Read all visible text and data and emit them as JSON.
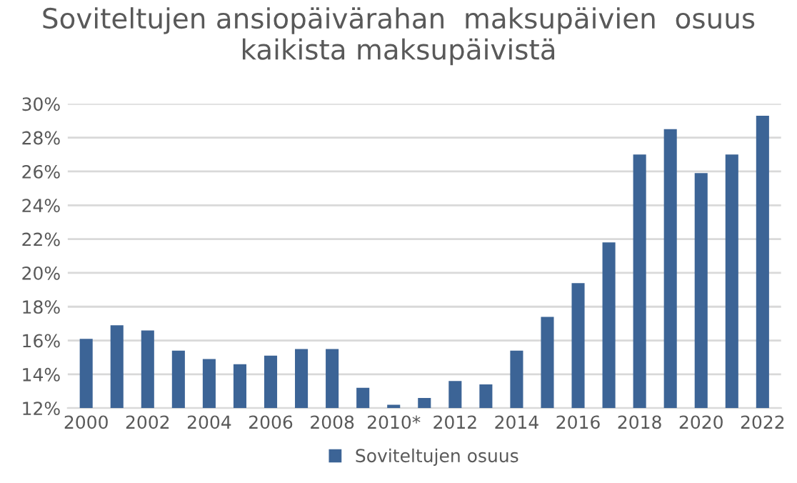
{
  "chart_data": {
    "type": "bar",
    "title": "Soviteltujen ansiopäivärahan  maksupäivien  osuus kaikista maksupäivistä",
    "categories": [
      "2000",
      null,
      "2002",
      null,
      "2004",
      null,
      "2006",
      null,
      "2008",
      null,
      "2010*",
      null,
      "2012",
      null,
      "2014",
      null,
      "2016",
      null,
      "2018",
      null,
      "2020",
      null,
      "2022"
    ],
    "series": [
      {
        "name": "Soviteltujen osuus",
        "color": "#3c6496",
        "values": [
          16.1,
          16.9,
          16.6,
          15.4,
          14.9,
          14.6,
          15.1,
          15.5,
          15.5,
          13.2,
          12.2,
          12.6,
          13.6,
          13.4,
          15.4,
          17.4,
          19.4,
          21.8,
          27.0,
          28.5,
          25.9,
          27.0,
          29.3
        ]
      }
    ],
    "ylim": [
      12,
      30
    ],
    "yticks": [
      {
        "value": 12,
        "label": "12%"
      },
      {
        "value": 14,
        "label": "14%"
      },
      {
        "value": 16,
        "label": "16%"
      },
      {
        "value": 18,
        "label": "18%"
      },
      {
        "value": 20,
        "label": "20%"
      },
      {
        "value": 22,
        "label": "22%"
      },
      {
        "value": 24,
        "label": "24%"
      },
      {
        "value": 26,
        "label": "26%"
      },
      {
        "value": 28,
        "label": "28%"
      },
      {
        "value": 30,
        "label": "30%"
      }
    ],
    "grid": "y",
    "legend": "bottom"
  }
}
